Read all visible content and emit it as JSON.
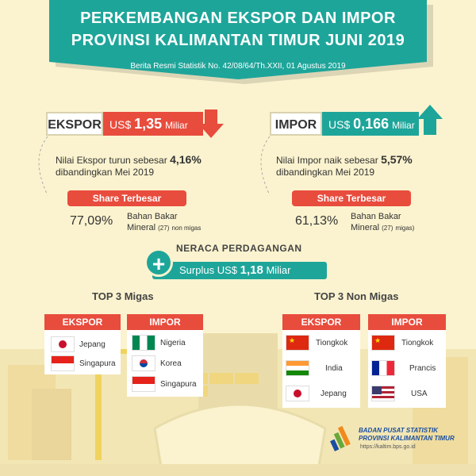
{
  "header": {
    "title_line1": "PERKEMBANGAN EKSPOR DAN IMPOR",
    "title_line2": "PROVINSI KALIMANTAN TIMUR JUNI 2019",
    "subtitle": "Berita Resmi Statistik No. 42/08/64/Th.XXII, 01 Agustus 2019"
  },
  "ekspor": {
    "label": "EKSPOR",
    "value_prefix": "US$",
    "value": "1,35",
    "value_unit": "Miliar",
    "desc_line1": "Nilai Ekspor turun sebesar",
    "change": "4,16%",
    "desc_line2": "dibandingkan Mei 2019",
    "share_label": "Share Terbesar",
    "share_pct": "77,09%",
    "share_line1": "Bahan Bakar",
    "share_line2": "Mineral",
    "share_code": "(27)",
    "share_suffix": "non migas",
    "color": "#e84c3d",
    "trend": "down"
  },
  "impor": {
    "label": "IMPOR",
    "value_prefix": "US$",
    "value": "0,166",
    "value_unit": "Miliar",
    "desc_line1": "Nilai Impor naik sebesar",
    "change": "5,57%",
    "desc_line2": "dibandingkan Mei 2019",
    "share_label": "Share Terbesar",
    "share_pct": "61,13%",
    "share_line1": "Bahan Bakar",
    "share_line2": "Mineral",
    "share_code": "(27)",
    "share_suffix": "migas)",
    "color": "#1ea59a",
    "trend": "up"
  },
  "neraca": {
    "title": "NERACA PERDAGANGAN",
    "label": "Surplus US$",
    "value": "1,18",
    "unit": "Miliar"
  },
  "top3_migas": {
    "title": "TOP 3 Migas",
    "ekspor_head": "EKSPOR",
    "impor_head": "IMPOR",
    "ekspor": [
      "Jepang",
      "Singapura"
    ],
    "impor": [
      "Nigeria",
      "Korea",
      "Singapura"
    ]
  },
  "top3_nonmigas": {
    "title": "TOP 3 Non Migas",
    "ekspor_head": "EKSPOR",
    "impor_head": "IMPOR",
    "ekspor": [
      "Tiongkok",
      "India",
      "Jepang"
    ],
    "impor": [
      "Tiongkok",
      "Prancis",
      "USA"
    ]
  },
  "footer": {
    "org_line1": "BADAN PUSAT STATISTIK",
    "org_line2": "PROVINSI KALIMANTAN TIMUR",
    "url": "https://kaltim.bps.go.id"
  },
  "icons": {
    "down_arrow": "arrow-down-icon",
    "up_arrow": "arrow-up-icon",
    "plus": "plus-icon",
    "logo": "bps-logo-icon"
  }
}
